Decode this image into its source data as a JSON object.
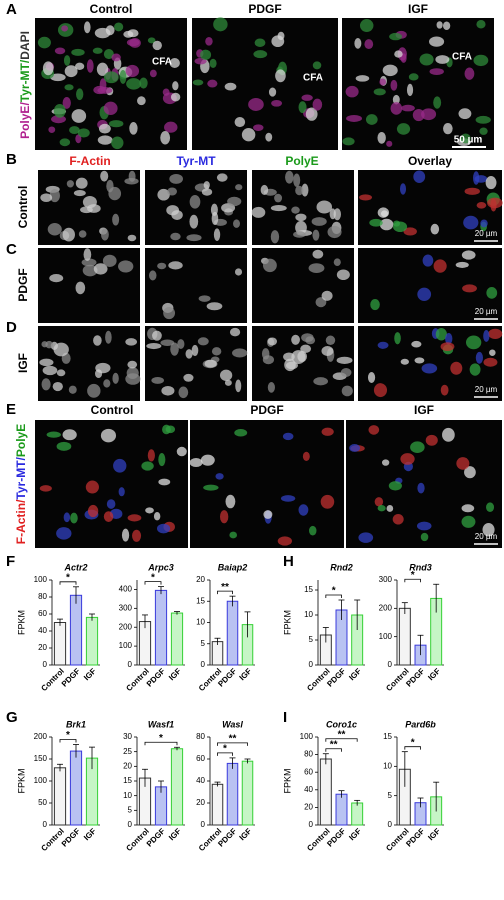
{
  "panel_a": {
    "letter": "A",
    "columns": [
      "Control",
      "PDGF",
      "IGF"
    ],
    "side_label": [
      "PolyE/",
      "Tyr-MT/",
      "DAPI"
    ],
    "annotations": [
      "CFA",
      "CFA",
      "CFA"
    ],
    "scale_bar": "50 µm"
  },
  "panels_bcd": {
    "letters": [
      "B",
      "C",
      "D"
    ],
    "columns": [
      "F-Actin",
      "Tyr-MT",
      "PolyE",
      "Overlay"
    ],
    "rows": [
      "Control",
      "PDGF",
      "IGF"
    ],
    "scale_bars": [
      "20 µm",
      "20 µm",
      "20 µm"
    ]
  },
  "panel_e": {
    "letter": "E",
    "columns": [
      "Control",
      "PDGF",
      "IGF"
    ],
    "side_label": [
      "F-Actin/",
      "Tyr-MT/",
      "PolyE"
    ],
    "scale_bar": "20 µm"
  },
  "chart_letters": [
    "F",
    "H",
    "G",
    "I"
  ],
  "chart_data": [
    {
      "type": "bar",
      "title": "Actr2",
      "ylabel": "FPKM",
      "categories": [
        "Control",
        "PDGF",
        "IGF"
      ],
      "values": [
        50,
        82,
        56
      ],
      "errors": [
        4,
        10,
        4
      ],
      "colors": [
        "#333333",
        "#3a3adc",
        "#35d035"
      ],
      "fills": [
        "#f4f4f4",
        "#b9c2f2",
        "#c6f5c6"
      ],
      "ylim": [
        0,
        100
      ],
      "yticks": [
        0,
        20,
        40,
        60,
        80,
        100
      ],
      "significance": [
        {
          "between": [
            0,
            1
          ],
          "label": "*"
        }
      ]
    },
    {
      "type": "bar",
      "title": "Arpc3",
      "categories": [
        "Control",
        "PDGF",
        "IGF"
      ],
      "values": [
        230,
        395,
        275
      ],
      "errors": [
        35,
        20,
        8
      ],
      "colors": [
        "#333333",
        "#3a3adc",
        "#35d035"
      ],
      "fills": [
        "#f4f4f4",
        "#b9c2f2",
        "#c6f5c6"
      ],
      "ylim": [
        0,
        450
      ],
      "yticks": [
        0,
        100,
        200,
        300,
        400
      ],
      "significance": [
        {
          "between": [
            0,
            1
          ],
          "label": "*"
        }
      ]
    },
    {
      "type": "bar",
      "title": "Baiap2",
      "categories": [
        "Control",
        "PDGF",
        "IGF"
      ],
      "values": [
        5.5,
        15,
        9.5
      ],
      "errors": [
        0.8,
        1.2,
        3
      ],
      "colors": [
        "#333333",
        "#3a3adc",
        "#35d035"
      ],
      "fills": [
        "#f4f4f4",
        "#b9c2f2",
        "#c6f5c6"
      ],
      "ylim": [
        0,
        20
      ],
      "yticks": [
        0,
        5,
        10,
        15,
        20
      ],
      "significance": [
        {
          "between": [
            0,
            1
          ],
          "label": "**"
        }
      ]
    },
    {
      "type": "bar",
      "title": "Rnd2",
      "ylabel": "FPKM",
      "categories": [
        "Control",
        "PDGF",
        "IGF"
      ],
      "values": [
        6,
        11,
        10
      ],
      "errors": [
        1.5,
        2,
        3
      ],
      "colors": [
        "#333333",
        "#3a3adc",
        "#35d035"
      ],
      "fills": [
        "#f4f4f4",
        "#b9c2f2",
        "#c6f5c6"
      ],
      "ylim": [
        0,
        17
      ],
      "yticks": [
        0,
        5,
        10,
        15
      ],
      "significance": [
        {
          "between": [
            0,
            1
          ],
          "label": "*"
        }
      ]
    },
    {
      "type": "bar",
      "title": "Rnd3",
      "categories": [
        "Control",
        "PDGF",
        "IGF"
      ],
      "values": [
        200,
        70,
        235
      ],
      "errors": [
        20,
        35,
        50
      ],
      "colors": [
        "#333333",
        "#3a3adc",
        "#35d035"
      ],
      "fills": [
        "#f4f4f4",
        "#b9c2f2",
        "#c6f5c6"
      ],
      "ylim": [
        0,
        300
      ],
      "yticks": [
        0,
        100,
        200,
        300
      ],
      "significance": [
        {
          "between": [
            0,
            1
          ],
          "label": "*"
        }
      ]
    },
    {
      "type": "bar",
      "title": "Brk1",
      "ylabel": "FPKM",
      "categories": [
        "Control",
        "PDGF",
        "IGF"
      ],
      "values": [
        130,
        168,
        152
      ],
      "errors": [
        8,
        15,
        25
      ],
      "colors": [
        "#333333",
        "#3a3adc",
        "#35d035"
      ],
      "fills": [
        "#f4f4f4",
        "#b9c2f2",
        "#c6f5c6"
      ],
      "ylim": [
        0,
        200
      ],
      "yticks": [
        0,
        50,
        100,
        150,
        200
      ],
      "significance": [
        {
          "between": [
            0,
            1
          ],
          "label": "*"
        }
      ]
    },
    {
      "type": "bar",
      "title": "Wasf1",
      "categories": [
        "Control",
        "PDGF",
        "IGF"
      ],
      "values": [
        16,
        13,
        26
      ],
      "errors": [
        3,
        2,
        0.5
      ],
      "colors": [
        "#333333",
        "#3a3adc",
        "#35d035"
      ],
      "fills": [
        "#f4f4f4",
        "#b9c2f2",
        "#c6f5c6"
      ],
      "ylim": [
        0,
        30
      ],
      "yticks": [
        0,
        5,
        10,
        15,
        20,
        25,
        30
      ],
      "significance": [
        {
          "between": [
            0,
            2
          ],
          "label": "*"
        }
      ]
    },
    {
      "type": "bar",
      "title": "Wasl",
      "categories": [
        "Control",
        "PDGF",
        "IGF"
      ],
      "values": [
        37,
        56,
        58
      ],
      "errors": [
        2,
        5,
        2
      ],
      "colors": [
        "#333333",
        "#3a3adc",
        "#35d035"
      ],
      "fills": [
        "#f4f4f4",
        "#b9c2f2",
        "#c6f5c6"
      ],
      "ylim": [
        0,
        80
      ],
      "yticks": [
        0,
        20,
        40,
        60,
        80
      ],
      "significance": [
        {
          "between": [
            0,
            1
          ],
          "label": "*"
        },
        {
          "between": [
            0,
            2
          ],
          "label": "**"
        }
      ]
    },
    {
      "type": "bar",
      "title": "Coro1c",
      "ylabel": "FPKM",
      "categories": [
        "Control",
        "PDGF",
        "IGF"
      ],
      "values": [
        75,
        35,
        25
      ],
      "errors": [
        6,
        4,
        3
      ],
      "colors": [
        "#333333",
        "#3a3adc",
        "#35d035"
      ],
      "fills": [
        "#f4f4f4",
        "#b9c2f2",
        "#c6f5c6"
      ],
      "ylim": [
        0,
        100
      ],
      "yticks": [
        0,
        20,
        40,
        60,
        80,
        100
      ],
      "significance": [
        {
          "between": [
            0,
            1
          ],
          "label": "**"
        },
        {
          "between": [
            0,
            2
          ],
          "label": "**"
        }
      ]
    },
    {
      "type": "bar",
      "title": "Pard6b",
      "categories": [
        "Control",
        "PDGF",
        "IGF"
      ],
      "values": [
        9.5,
        3.8,
        4.8
      ],
      "errors": [
        3,
        0.8,
        2.5
      ],
      "colors": [
        "#333333",
        "#3a3adc",
        "#35d035"
      ],
      "fills": [
        "#f4f4f4",
        "#b9c2f2",
        "#c6f5c6"
      ],
      "ylim": [
        0,
        15
      ],
      "yticks": [
        0,
        5,
        10,
        15
      ],
      "significance": [
        {
          "between": [
            0,
            1
          ],
          "label": "*"
        }
      ]
    }
  ]
}
